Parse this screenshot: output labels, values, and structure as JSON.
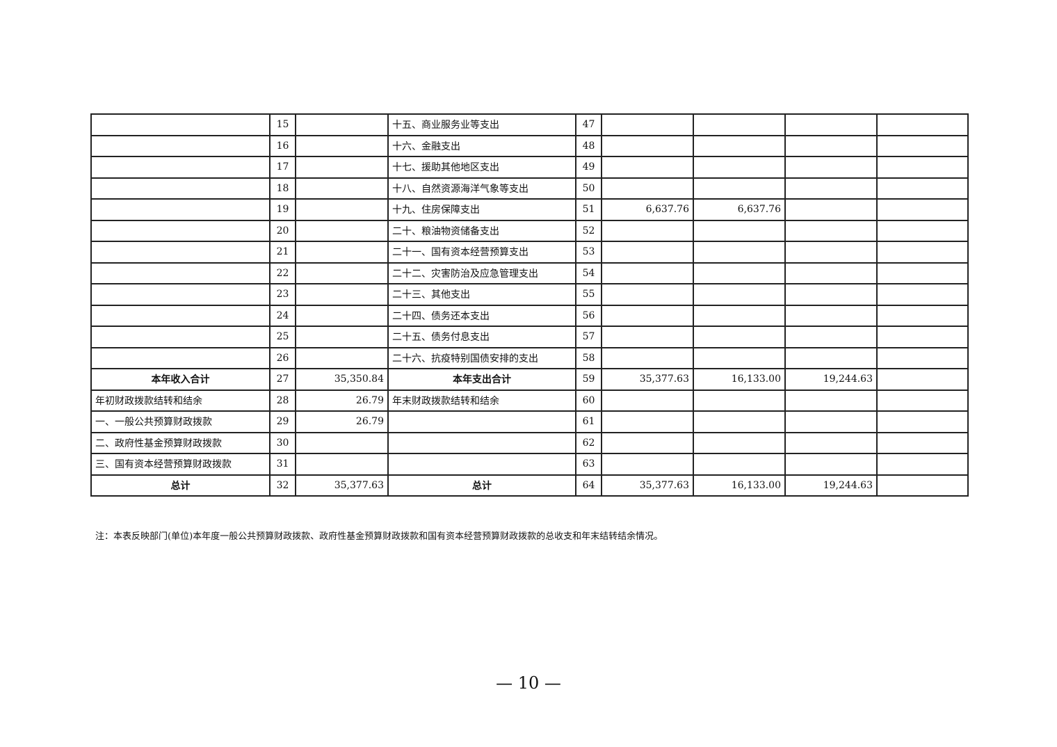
{
  "rows": [
    [
      "",
      "15",
      "",
      "十五、商业服务业等支出",
      "47",
      "",
      "",
      "",
      ""
    ],
    [
      "",
      "16",
      "",
      "十六、金融支出",
      "48",
      "",
      "",
      "",
      ""
    ],
    [
      "",
      "17",
      "",
      "十七、援助其他地区支出",
      "49",
      "",
      "",
      "",
      ""
    ],
    [
      "",
      "18",
      "",
      "十八、自然资源海洋气象等支出",
      "50",
      "",
      "",
      "",
      ""
    ],
    [
      "",
      "19",
      "",
      "十九、住房保障支出",
      "51",
      "6,637.76",
      "6,637.76",
      "",
      ""
    ],
    [
      "",
      "20",
      "",
      "二十、粮油物资储备支出",
      "52",
      "",
      "",
      "",
      ""
    ],
    [
      "",
      "21",
      "",
      "二十一、国有资本经营预算支出",
      "53",
      "",
      "",
      "",
      ""
    ],
    [
      "",
      "22",
      "",
      "二十二、灾害防治及应急管理支出",
      "54",
      "",
      "",
      "",
      ""
    ],
    [
      "",
      "23",
      "",
      "二十三、其他支出",
      "55",
      "",
      "",
      "",
      ""
    ],
    [
      "",
      "24",
      "",
      "二十四、债务还本支出",
      "56",
      "",
      "",
      "",
      ""
    ],
    [
      "",
      "25",
      "",
      "二十五、债务付息支出",
      "57",
      "",
      "",
      "",
      ""
    ],
    [
      "",
      "26",
      "",
      "二十六、抗疫特别国债安排的支出",
      "58",
      "",
      "",
      "",
      ""
    ],
    [
      "本年收入合计",
      "27",
      "35,350.84",
      "本年支出合计",
      "59",
      "35,377.63",
      "16,133.00",
      "19,244.63",
      ""
    ],
    [
      "年初财政拨款结转和结余",
      "28",
      "26.79",
      "年末财政拨款结转和结余",
      "60",
      "",
      "",
      "",
      ""
    ],
    [
      "一、一般公共预算财政拨款",
      "29",
      "26.79",
      "",
      "61",
      "",
      "",
      "",
      ""
    ],
    [
      "二、政府性基金预算财政拨款",
      "30",
      "",
      "",
      "62",
      "",
      "",
      "",
      ""
    ],
    [
      "三、国有资本经营预算财政拨款",
      "31",
      "",
      "",
      "63",
      "",
      "",
      "",
      ""
    ],
    [
      "总计",
      "32",
      "35,377.63",
      "总计",
      "64",
      "35,377.63",
      "16,133.00",
      "19,244.63",
      ""
    ]
  ],
  "bold_rows": [
    12,
    17
  ],
  "note": "注：本表反映部门(单位)本年度一般公共预算财政拨款、政府性基金预算财政拨款和国有资本经营预算财政拨款的总收支和年末结转结余情况。",
  "page_number": "— 10 —"
}
